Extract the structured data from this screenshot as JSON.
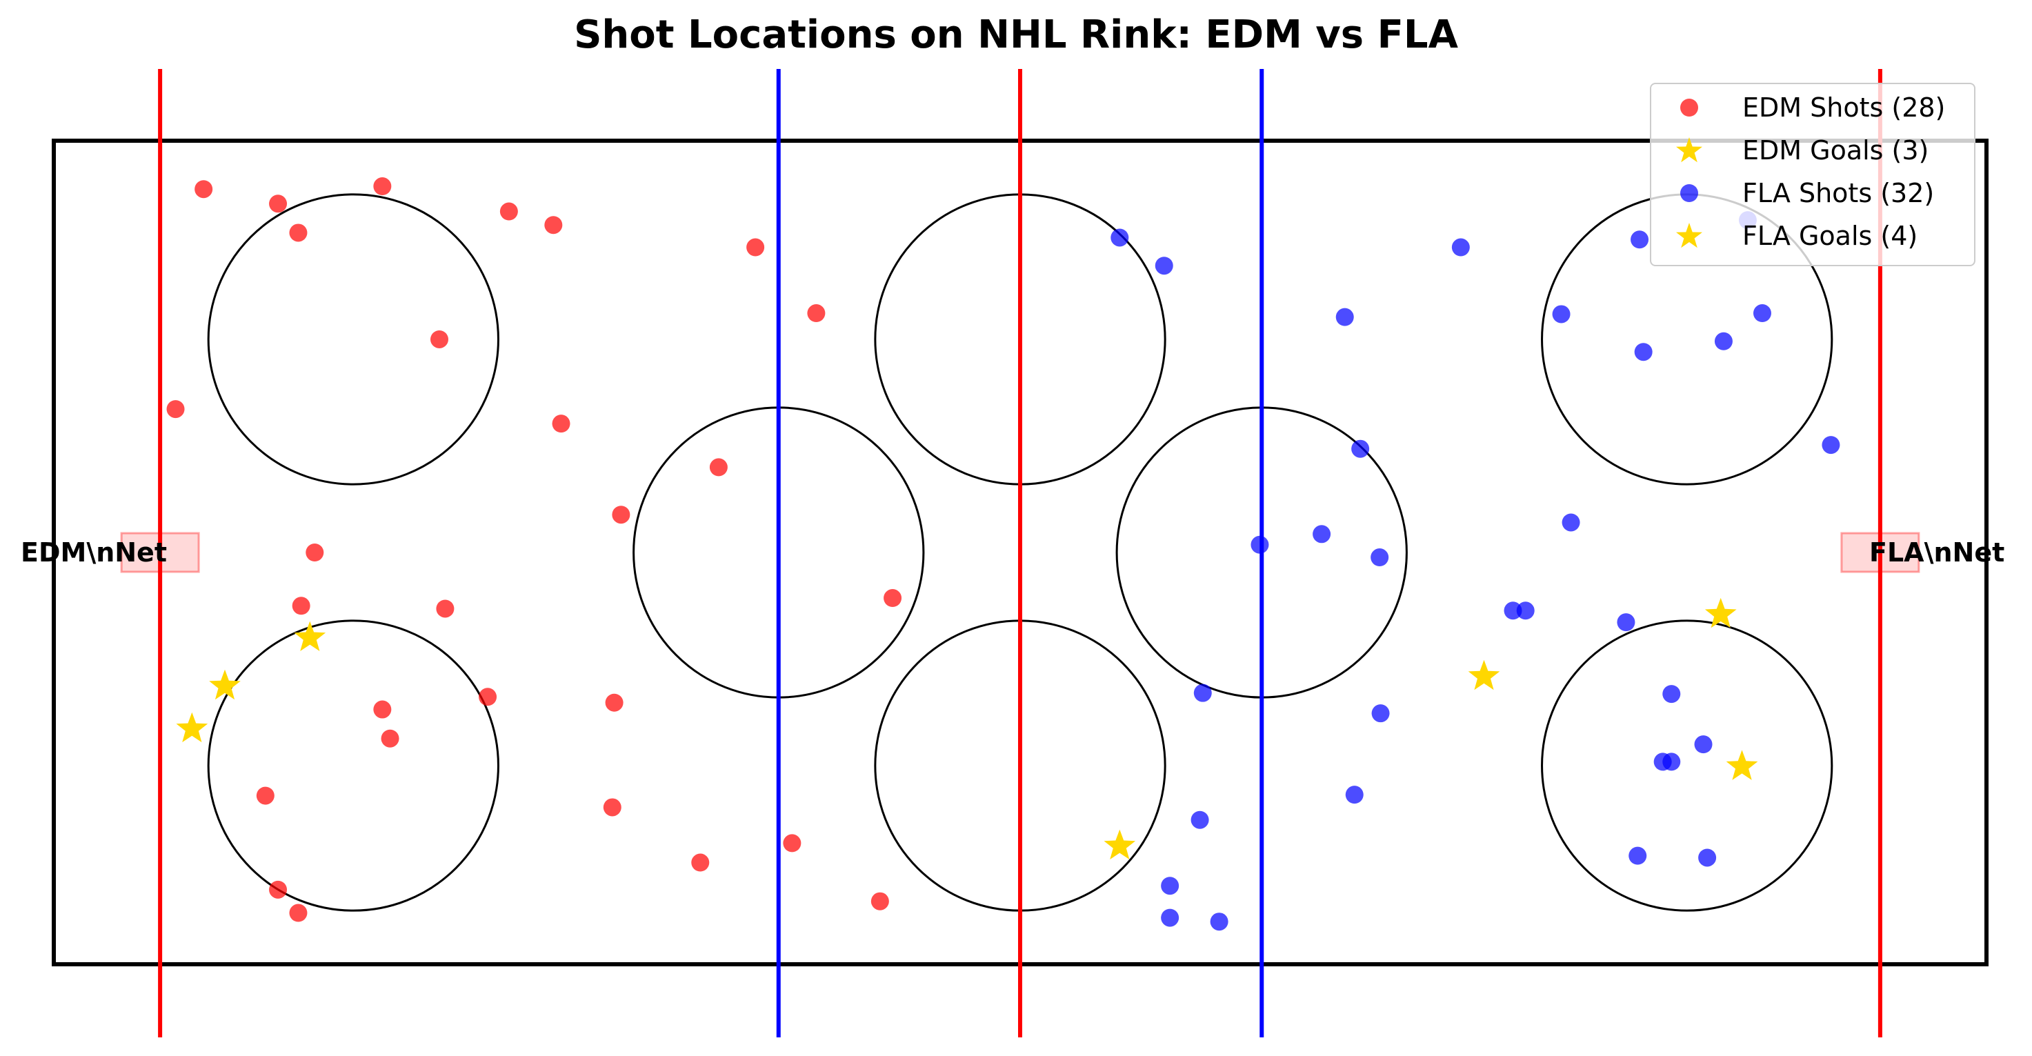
{
  "chart_data": {
    "type": "scatter",
    "title": "Shot Locations on NHL Rink: EDM vs FLA",
    "xlim": [
      0,
      200
    ],
    "ylim": [
      -42.5,
      42.5
    ],
    "grid": false,
    "legend_position": "top-right",
    "rink": {
      "goal_lines_x": [
        11,
        189
      ],
      "blue_lines_x": [
        75,
        125
      ],
      "center_line_x": 100,
      "faceoff_circle_radius": 15,
      "faceoff_circles": [
        [
          31,
          22
        ],
        [
          31,
          -22
        ],
        [
          169,
          22
        ],
        [
          169,
          -22
        ],
        [
          100,
          22
        ],
        [
          100,
          -22
        ],
        [
          75,
          0
        ],
        [
          125,
          0
        ]
      ]
    },
    "nets": [
      {
        "label": "EDM\\nNet",
        "x": 11,
        "y": 0
      },
      {
        "label": "FLA\\nNet",
        "x": 189,
        "y": 0
      }
    ],
    "series": [
      {
        "name": "EDM Shots (28)",
        "marker": "circle",
        "color": "#ff0000",
        "points": [
          [
            15.5,
            37.5
          ],
          [
            23.2,
            36.0
          ],
          [
            34.0,
            37.8
          ],
          [
            25.3,
            33.0
          ],
          [
            47.1,
            35.2
          ],
          [
            51.7,
            33.8
          ],
          [
            72.6,
            31.5
          ],
          [
            39.9,
            22.0
          ],
          [
            12.6,
            14.8
          ],
          [
            78.9,
            24.7
          ],
          [
            52.5,
            13.3
          ],
          [
            25.6,
            -5.5
          ],
          [
            40.5,
            -5.8
          ],
          [
            68.8,
            8.8
          ],
          [
            34.0,
            -16.2
          ],
          [
            27.0,
            0.0
          ],
          [
            58.7,
            3.9
          ],
          [
            86.8,
            -4.7
          ],
          [
            44.9,
            -14.9
          ],
          [
            34.8,
            -19.2
          ],
          [
            21.9,
            -25.1
          ],
          [
            58.0,
            -15.5
          ],
          [
            57.8,
            -26.3
          ],
          [
            76.4,
            -30.0
          ],
          [
            66.9,
            -32.0
          ],
          [
            23.2,
            -34.8
          ],
          [
            25.3,
            -37.2
          ],
          [
            85.5,
            -36.0
          ]
        ]
      },
      {
        "name": "EDM Goals (3)",
        "marker": "star",
        "color": "#ffd700",
        "points": [
          [
            26.5,
            -8.8
          ],
          [
            17.7,
            -13.8
          ],
          [
            14.3,
            -18.2
          ]
        ]
      },
      {
        "name": "FLA Shots (32)",
        "marker": "circle",
        "color": "#0000ff",
        "points": [
          [
            110.3,
            32.5
          ],
          [
            114.9,
            29.6
          ],
          [
            145.6,
            31.5
          ],
          [
            175.3,
            34.3
          ],
          [
            164.1,
            32.3
          ],
          [
            156.0,
            24.6
          ],
          [
            133.6,
            24.3
          ],
          [
            164.5,
            20.7
          ],
          [
            172.8,
            21.8
          ],
          [
            176.8,
            24.7
          ],
          [
            183.9,
            11.1
          ],
          [
            135.2,
            10.7
          ],
          [
            157.0,
            3.1
          ],
          [
            131.2,
            1.9
          ],
          [
            124.8,
            0.8
          ],
          [
            137.2,
            -0.5
          ],
          [
            152.3,
            -6.0
          ],
          [
            151.0,
            -6.0
          ],
          [
            162.7,
            -7.2
          ],
          [
            118.9,
            -14.5
          ],
          [
            137.3,
            -16.6
          ],
          [
            167.4,
            -14.6
          ],
          [
            170.7,
            -19.8
          ],
          [
            167.4,
            -21.6
          ],
          [
            166.5,
            -21.6
          ],
          [
            134.6,
            -25.0
          ],
          [
            118.6,
            -27.6
          ],
          [
            115.5,
            -34.4
          ],
          [
            115.5,
            -37.7
          ],
          [
            120.6,
            -38.1
          ],
          [
            163.9,
            -31.3
          ],
          [
            171.1,
            -31.5
          ]
        ]
      },
      {
        "name": "FLA Goals (4)",
        "marker": "star",
        "color": "#ffd700",
        "points": [
          [
            172.5,
            -6.4
          ],
          [
            148.0,
            -12.8
          ],
          [
            174.7,
            -22.1
          ],
          [
            110.3,
            -30.3
          ]
        ]
      }
    ]
  }
}
